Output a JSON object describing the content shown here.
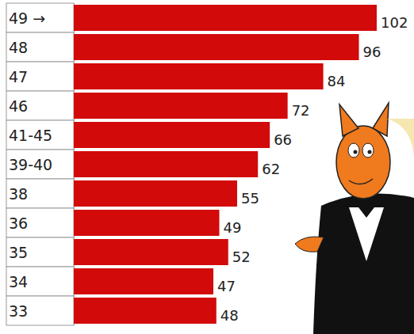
{
  "chart_data": {
    "type": "bar",
    "orientation": "horizontal",
    "categories": [
      "49 →",
      "48",
      "47",
      "46",
      "41-45",
      "39-40",
      "38",
      "36",
      "35",
      "34",
      "33"
    ],
    "values": [
      102,
      96,
      84,
      72,
      66,
      62,
      55,
      49,
      52,
      47,
      48
    ],
    "color": "#d20a0a",
    "xlim": [
      0,
      102
    ],
    "grid": false,
    "data_labels": true,
    "tick_labels": "y"
  }
}
